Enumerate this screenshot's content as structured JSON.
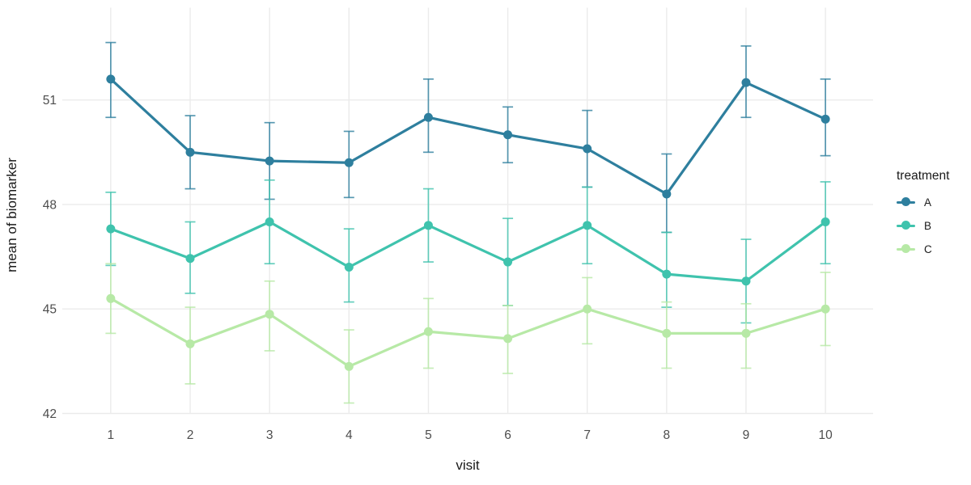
{
  "chart_data": {
    "type": "line",
    "title": "",
    "xlabel": "visit",
    "ylabel": "mean of biomarker",
    "legend_title": "treatment",
    "legend_position": "right",
    "grid": true,
    "error_bars": true,
    "background_color": "#ffffff",
    "grid_color": "#ebebeb",
    "tick_label_color": "#4d4d4d",
    "axis_title_color": "#1a1a1a",
    "x": [
      1,
      2,
      3,
      4,
      5,
      6,
      7,
      8,
      9,
      10
    ],
    "y_ticks": [
      42,
      45,
      48,
      51
    ],
    "xlim": [
      0.39,
      10.6
    ],
    "ylim": [
      42,
      53.65
    ],
    "series": [
      {
        "name": "A",
        "color": "#2e7f9e",
        "values": [
          51.6,
          49.5,
          49.25,
          49.2,
          50.5,
          50.0,
          49.6,
          48.3,
          51.5,
          50.45
        ],
        "lower": [
          50.5,
          48.45,
          48.15,
          48.2,
          49.5,
          49.2,
          48.5,
          47.2,
          50.5,
          49.4
        ],
        "upper": [
          52.65,
          50.55,
          50.35,
          50.1,
          51.6,
          50.8,
          50.7,
          49.45,
          52.55,
          51.6
        ]
      },
      {
        "name": "B",
        "color": "#3fc3ad",
        "values": [
          47.3,
          46.45,
          47.5,
          46.2,
          47.4,
          46.35,
          47.4,
          46.0,
          45.8,
          47.5
        ],
        "lower": [
          46.25,
          45.45,
          46.3,
          45.2,
          46.35,
          45.1,
          46.3,
          45.05,
          44.6,
          46.3
        ],
        "upper": [
          48.35,
          47.5,
          48.7,
          47.3,
          48.45,
          47.6,
          48.5,
          47.2,
          47.0,
          48.65
        ]
      },
      {
        "name": "C",
        "color": "#b7e9a6",
        "values": [
          45.3,
          44.0,
          44.85,
          43.35,
          44.35,
          44.15,
          45.0,
          44.3,
          44.3,
          45.0
        ],
        "lower": [
          44.3,
          42.85,
          43.8,
          42.3,
          43.3,
          43.15,
          44.0,
          43.3,
          43.3,
          43.95
        ],
        "upper": [
          46.3,
          45.05,
          45.8,
          44.4,
          45.3,
          45.1,
          45.9,
          45.2,
          45.15,
          46.05
        ]
      }
    ]
  }
}
